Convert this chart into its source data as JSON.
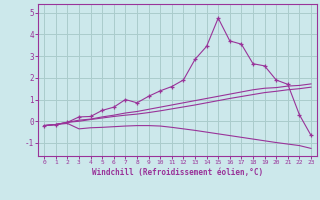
{
  "background_color": "#cce8eb",
  "grid_color": "#aacccc",
  "line_color": "#993399",
  "xlabel": "Windchill (Refroidissement éolien,°C)",
  "xlim": [
    -0.5,
    23.5
  ],
  "ylim": [
    -1.6,
    5.4
  ],
  "yticks": [
    -1,
    0,
    1,
    2,
    3,
    4,
    5
  ],
  "xticks": [
    0,
    1,
    2,
    3,
    4,
    5,
    6,
    7,
    8,
    9,
    10,
    11,
    12,
    13,
    14,
    15,
    16,
    17,
    18,
    19,
    20,
    21,
    22,
    23
  ],
  "series": [
    {
      "x": [
        0,
        1,
        2,
        3,
        4,
        5,
        6,
        7,
        8,
        9,
        10,
        11,
        12,
        13,
        14,
        15,
        16,
        17,
        18,
        19,
        20,
        21,
        22,
        23
      ],
      "y": [
        -0.2,
        -0.15,
        -0.05,
        0.2,
        0.22,
        0.5,
        0.65,
        1.0,
        0.85,
        1.15,
        1.4,
        1.6,
        1.9,
        2.85,
        3.45,
        4.75,
        3.7,
        3.55,
        2.65,
        2.55,
        1.9,
        1.7,
        0.3,
        -0.65
      ],
      "marker": true
    },
    {
      "x": [
        0,
        1,
        2,
        3,
        4,
        5,
        6,
        7,
        8,
        9,
        10,
        11,
        12,
        13,
        14,
        15,
        16,
        17,
        18,
        19,
        20,
        21,
        22,
        23
      ],
      "y": [
        -0.2,
        -0.15,
        -0.05,
        0.05,
        0.1,
        0.2,
        0.28,
        0.38,
        0.45,
        0.55,
        0.65,
        0.75,
        0.85,
        0.95,
        1.05,
        1.15,
        1.25,
        1.35,
        1.45,
        1.52,
        1.55,
        1.62,
        1.65,
        1.72
      ],
      "marker": false
    },
    {
      "x": [
        0,
        1,
        2,
        3,
        4,
        5,
        6,
        7,
        8,
        9,
        10,
        11,
        12,
        13,
        14,
        15,
        16,
        17,
        18,
        19,
        20,
        21,
        22,
        23
      ],
      "y": [
        -0.2,
        -0.15,
        -0.05,
        0.0,
        0.08,
        0.15,
        0.22,
        0.28,
        0.33,
        0.4,
        0.48,
        0.57,
        0.66,
        0.75,
        0.85,
        0.95,
        1.05,
        1.14,
        1.23,
        1.32,
        1.38,
        1.45,
        1.5,
        1.57
      ],
      "marker": false
    },
    {
      "x": [
        0,
        1,
        2,
        3,
        4,
        5,
        6,
        7,
        8,
        9,
        10,
        11,
        12,
        13,
        14,
        15,
        16,
        17,
        18,
        19,
        20,
        21,
        22,
        23
      ],
      "y": [
        -0.2,
        -0.15,
        -0.1,
        -0.35,
        -0.3,
        -0.28,
        -0.25,
        -0.22,
        -0.2,
        -0.2,
        -0.22,
        -0.28,
        -0.35,
        -0.42,
        -0.5,
        -0.58,
        -0.66,
        -0.74,
        -0.82,
        -0.9,
        -0.98,
        -1.05,
        -1.12,
        -1.25
      ],
      "marker": false
    }
  ]
}
